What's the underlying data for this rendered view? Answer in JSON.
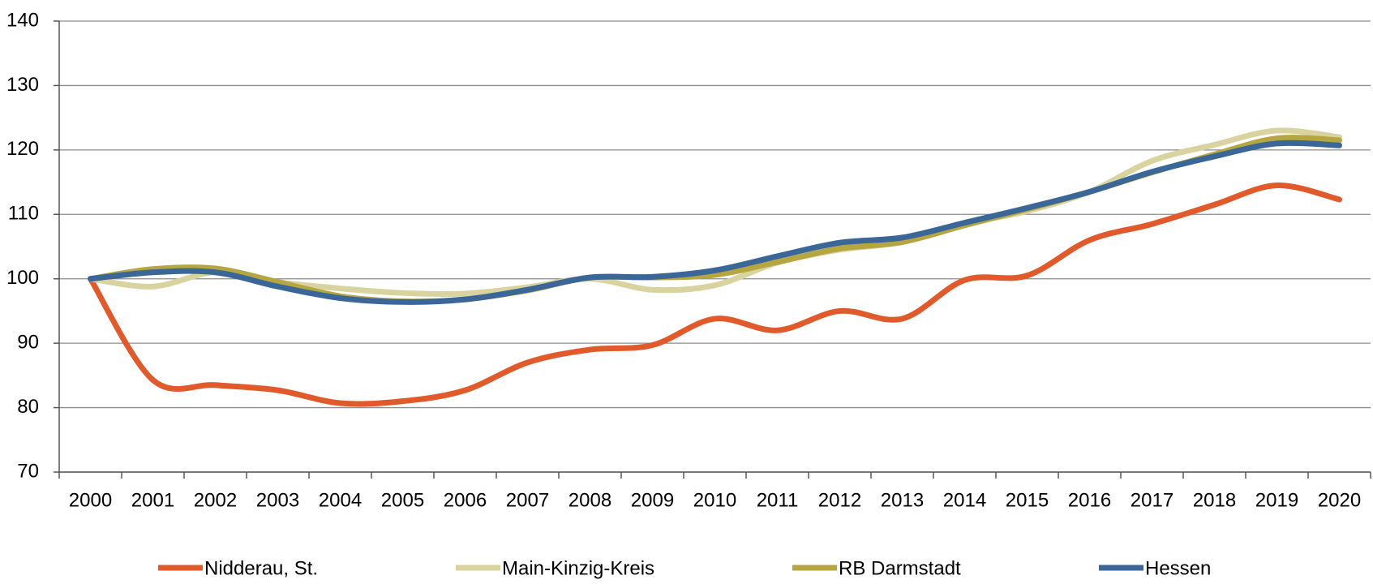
{
  "chart_data": {
    "type": "line",
    "categories": [
      "2000",
      "2001",
      "2002",
      "2003",
      "2004",
      "2005",
      "2006",
      "2007",
      "2008",
      "2009",
      "2010",
      "2011",
      "2012",
      "2013",
      "2014",
      "2015",
      "2016",
      "2017",
      "2018",
      "2019",
      "2020"
    ],
    "series": [
      {
        "name": "Nidderau, St.",
        "color": "#e05a2b",
        "values": [
          100,
          84.3,
          83.5,
          82.7,
          80.7,
          81,
          82.7,
          87,
          89,
          89.7,
          93.8,
          92,
          95,
          93.8,
          99.8,
          100.5,
          106,
          108.5,
          111.5,
          114.5,
          112.3
        ]
      },
      {
        "name": "Main-Kinzig-Kreis",
        "color": "#d9d3a0",
        "values": [
          100,
          98.8,
          101,
          99.5,
          98.5,
          97.8,
          97.7,
          98.7,
          100,
          98.3,
          99,
          102.5,
          104.5,
          105.7,
          108.5,
          110.5,
          113.5,
          118.3,
          120.8,
          123,
          122
        ]
      },
      {
        "name": "RB Darmstadt",
        "color": "#b5a642",
        "values": [
          100,
          101.5,
          101.6,
          99.5,
          97.3,
          96.5,
          96.8,
          98.2,
          100.2,
          100.2,
          100.6,
          102.6,
          104.7,
          105.7,
          108.3,
          110.8,
          113.5,
          116.5,
          119.3,
          121.8,
          121.5
        ]
      },
      {
        "name": "Hessen",
        "color": "#3a6698",
        "values": [
          100,
          101,
          101,
          98.8,
          97,
          96.4,
          96.8,
          98.3,
          100.2,
          100.3,
          101.3,
          103.5,
          105.6,
          106.4,
          108.7,
          111,
          113.5,
          116.6,
          119,
          121,
          120.7
        ]
      }
    ],
    "ylim": [
      70,
      140
    ],
    "yticks": [
      70,
      80,
      90,
      100,
      110,
      120,
      130,
      140
    ],
    "grid": true,
    "legend": "bottom"
  }
}
